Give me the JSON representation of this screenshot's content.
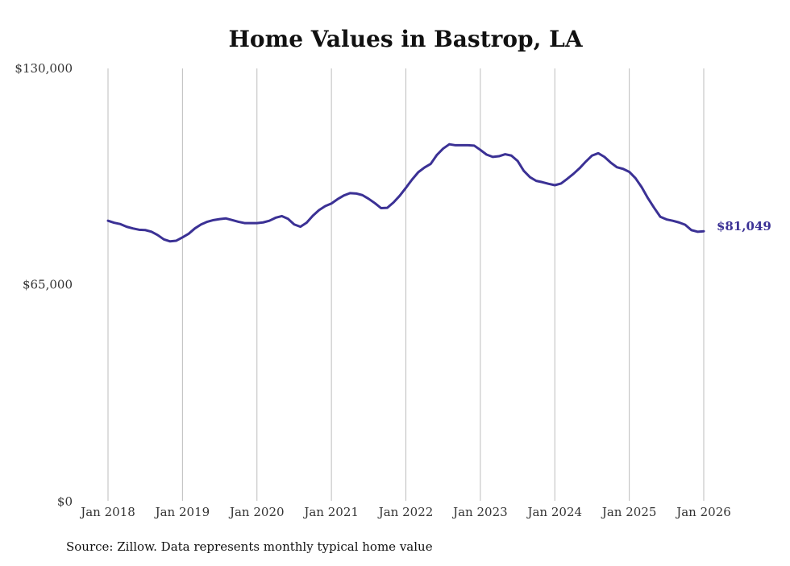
{
  "chart_data": {
    "type": "line",
    "title": "Home Values in Bastrop, LA",
    "source": "Source: Zillow. Data represents monthly typical home value",
    "y_ticks": [
      "$0",
      "$65,000",
      "$130,000"
    ],
    "y_tick_values": [
      0,
      65000,
      130000
    ],
    "ylim": [
      0,
      130000
    ],
    "x_ticks": [
      "Jan 2018",
      "Jan 2019",
      "Jan 2020",
      "Jan 2021",
      "Jan 2022",
      "Jan 2023",
      "Jan 2024",
      "Jan 2025",
      "Jan 2026"
    ],
    "x_tick_dates": [
      "2018-01",
      "2019-01",
      "2020-01",
      "2021-01",
      "2022-01",
      "2023-01",
      "2024-01",
      "2025-01",
      "2026-01"
    ],
    "xlim": [
      "2018-01",
      "2026-01"
    ],
    "grid": "vertical",
    "line_color": "#3b3195",
    "end_label": "$81,049",
    "series": [
      {
        "x": [
          "2018-01",
          "2018-02",
          "2018-03",
          "2018-04",
          "2018-05",
          "2018-06",
          "2018-07",
          "2018-08",
          "2018-09",
          "2018-10",
          "2018-11",
          "2018-12",
          "2019-01",
          "2019-02",
          "2019-03",
          "2019-04",
          "2019-05",
          "2019-06",
          "2019-07",
          "2019-08",
          "2019-09",
          "2019-10",
          "2019-11",
          "2019-12",
          "2020-01",
          "2020-02",
          "2020-03",
          "2020-04",
          "2020-05",
          "2020-06",
          "2020-07",
          "2020-08",
          "2020-09",
          "2020-10",
          "2020-11",
          "2020-12",
          "2021-01",
          "2021-02",
          "2021-03",
          "2021-04",
          "2021-05",
          "2021-06",
          "2021-07",
          "2021-08",
          "2021-09",
          "2021-10",
          "2021-11",
          "2021-12",
          "2022-01",
          "2022-02",
          "2022-03",
          "2022-04",
          "2022-05",
          "2022-06",
          "2022-07",
          "2022-08",
          "2022-09",
          "2022-10",
          "2022-11",
          "2022-12",
          "2023-01",
          "2023-02",
          "2023-03",
          "2023-04",
          "2023-05",
          "2023-06",
          "2023-07",
          "2023-08",
          "2023-09",
          "2023-10",
          "2023-11",
          "2023-12",
          "2024-01",
          "2024-02",
          "2024-03",
          "2024-04",
          "2024-05",
          "2024-06",
          "2024-07",
          "2024-08",
          "2024-09",
          "2024-10",
          "2024-11",
          "2024-12",
          "2025-01",
          "2025-02",
          "2025-03",
          "2025-04",
          "2025-05",
          "2025-06",
          "2025-07",
          "2025-08",
          "2025-09",
          "2025-10",
          "2025-11",
          "2025-12",
          "2026-01"
        ],
        "values": [
          84200,
          83600,
          83200,
          82400,
          81900,
          81500,
          81400,
          80900,
          79900,
          78600,
          78000,
          78200,
          79200,
          80300,
          81900,
          83100,
          83900,
          84400,
          84700,
          84900,
          84400,
          83900,
          83500,
          83500,
          83500,
          83700,
          84200,
          85100,
          85600,
          84800,
          83100,
          82400,
          83600,
          85700,
          87400,
          88600,
          89400,
          90700,
          91800,
          92500,
          92400,
          91900,
          90800,
          89500,
          88000,
          88100,
          89700,
          91700,
          94100,
          96600,
          98800,
          100200,
          101300,
          104000,
          105900,
          107200,
          106900,
          106900,
          106900,
          106800,
          105500,
          104100,
          103400,
          103600,
          104200,
          103800,
          102200,
          99200,
          97300,
          96200,
          95800,
          95300,
          94900,
          95400,
          96800,
          98300,
          100000,
          102000,
          103800,
          104500,
          103400,
          101700,
          100300,
          99800,
          98900,
          97000,
          94300,
          91000,
          88100,
          85400,
          84600,
          84200,
          83700,
          83000,
          81400,
          80900,
          81049
        ]
      }
    ]
  }
}
